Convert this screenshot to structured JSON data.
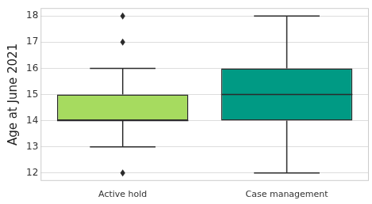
{
  "chart_data": {
    "type": "box",
    "y_label": "Age at June 2021",
    "categories": [
      "Active hold",
      "Case management"
    ],
    "min": [
      13,
      12
    ],
    "q1": [
      14,
      14
    ],
    "median": [
      14,
      15
    ],
    "q3": [
      15,
      16
    ],
    "max": [
      16,
      18
    ],
    "outliers": [
      [
        12,
        17,
        18
      ],
      []
    ],
    "colors": [
      "#a6db5f",
      "#009a84"
    ],
    "ylim": [
      11.7,
      18.3
    ],
    "yticks": [
      12,
      13,
      14,
      15,
      16,
      17,
      18
    ],
    "grid": true
  }
}
